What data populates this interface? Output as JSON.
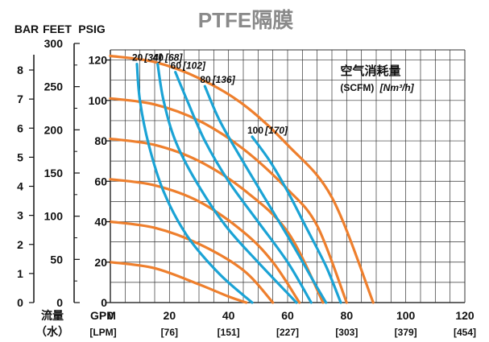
{
  "chart_data": {
    "type": "line",
    "title": "PTFE隔膜",
    "subtitle": "",
    "xlabel": {
      "cn_line1": "流量",
      "cn_line2": "（水）",
      "unit1": "GPM",
      "unit2": "[LPM]"
    },
    "x_ticks": [
      {
        "value": 20,
        "label": "20",
        "sub": "[76]"
      },
      {
        "value": 40,
        "label": "40",
        "sub": "[151]"
      },
      {
        "value": 60,
        "label": "60",
        "sub": "[227]"
      },
      {
        "value": 80,
        "label": "80",
        "sub": "[303]"
      },
      {
        "value": 100,
        "label": "100",
        "sub": "[379]"
      },
      {
        "value": 120,
        "label": "120",
        "sub": "[454]"
      }
    ],
    "x_zero_label": "0",
    "xlim": [
      0,
      120
    ],
    "ylim": [
      0,
      125
    ],
    "grid": true,
    "axis_units": {
      "bar": "BAR",
      "feet": "FEET",
      "psig": "PSIG"
    },
    "psig_ticks": [
      "0",
      "20",
      "40",
      "60",
      "80",
      "100",
      "120"
    ],
    "feet_ticks": [
      {
        "label": "0",
        "value": 0
      },
      {
        "label": "50",
        "value": 50
      },
      {
        "label": "100",
        "value": 100
      },
      {
        "label": "150",
        "value": 150
      },
      {
        "label": "200",
        "value": 200
      },
      {
        "label": "250",
        "value": 250
      },
      {
        "label": "300",
        "value": 300
      }
    ],
    "bar_ticks": [
      {
        "label": "0",
        "value": 0
      },
      {
        "label": "1",
        "value": 1
      },
      {
        "label": "2",
        "value": 2
      },
      {
        "label": "3",
        "value": 3
      },
      {
        "label": "4",
        "value": 4
      },
      {
        "label": "5",
        "value": 5
      },
      {
        "label": "6",
        "value": 6
      },
      {
        "label": "7",
        "value": 7
      },
      {
        "label": "8",
        "value": 8
      }
    ],
    "legend": {
      "title": "空气消耗量",
      "unit_plain": "(SCFM)",
      "unit_italic": "[Nm³/h]",
      "placement": "top-right"
    },
    "colors": {
      "pressure": "#ee7f2d",
      "air": "#1ba3d5",
      "grid": "#333333"
    },
    "pressure_curves": [
      {
        "name": "120 psig",
        "points": [
          [
            0,
            122
          ],
          [
            15,
            119
          ],
          [
            30,
            111
          ],
          [
            45,
            98
          ],
          [
            60,
            78
          ],
          [
            75,
            52
          ],
          [
            89,
            0
          ]
        ]
      },
      {
        "name": "100 psig",
        "points": [
          [
            0,
            101
          ],
          [
            15,
            98
          ],
          [
            30,
            90
          ],
          [
            45,
            76
          ],
          [
            60,
            56
          ],
          [
            70,
            38
          ],
          [
            80,
            0
          ]
        ]
      },
      {
        "name": "80 psig",
        "points": [
          [
            0,
            81
          ],
          [
            15,
            78
          ],
          [
            30,
            70
          ],
          [
            45,
            56
          ],
          [
            60,
            35
          ],
          [
            72,
            0
          ]
        ]
      },
      {
        "name": "60 psig",
        "points": [
          [
            0,
            61
          ],
          [
            15,
            58
          ],
          [
            30,
            50
          ],
          [
            45,
            35
          ],
          [
            55,
            20
          ],
          [
            64,
            0
          ]
        ]
      },
      {
        "name": "40 psig",
        "points": [
          [
            0,
            40
          ],
          [
            15,
            37
          ],
          [
            30,
            29
          ],
          [
            45,
            16
          ],
          [
            55,
            0
          ]
        ]
      },
      {
        "name": "20 psig",
        "points": [
          [
            0,
            20
          ],
          [
            15,
            17
          ],
          [
            30,
            9
          ],
          [
            40,
            3
          ],
          [
            46,
            0
          ]
        ]
      }
    ],
    "air_curves": [
      {
        "label": "20",
        "label_italic": "[34]",
        "points": [
          [
            9,
            118
          ],
          [
            10,
            100
          ],
          [
            13,
            78
          ],
          [
            18,
            55
          ],
          [
            26,
            33
          ],
          [
            37,
            14
          ],
          [
            48,
            0
          ]
        ]
      },
      {
        "label": "40",
        "label_italic": "[68]",
        "points": [
          [
            16,
            118
          ],
          [
            18,
            100
          ],
          [
            22,
            80
          ],
          [
            29,
            60
          ],
          [
            39,
            38
          ],
          [
            50,
            20
          ],
          [
            63,
            0
          ]
        ]
      },
      {
        "label": "60",
        "label_italic": "[102]",
        "points": [
          [
            22,
            114
          ],
          [
            26,
            100
          ],
          [
            32,
            80
          ],
          [
            40,
            60
          ],
          [
            50,
            40
          ],
          [
            60,
            20
          ],
          [
            68,
            0
          ]
        ]
      },
      {
        "label": "80",
        "label_italic": "[136]",
        "points": [
          [
            32,
            107
          ],
          [
            37,
            90
          ],
          [
            44,
            72
          ],
          [
            53,
            50
          ],
          [
            62,
            28
          ],
          [
            69,
            10
          ],
          [
            73,
            0
          ]
        ]
      },
      {
        "label": "100",
        "label_italic": "[170]",
        "points": [
          [
            48,
            82
          ],
          [
            54,
            70
          ],
          [
            60,
            55
          ],
          [
            66,
            38
          ],
          [
            73,
            18
          ],
          [
            78,
            0
          ]
        ]
      }
    ]
  }
}
